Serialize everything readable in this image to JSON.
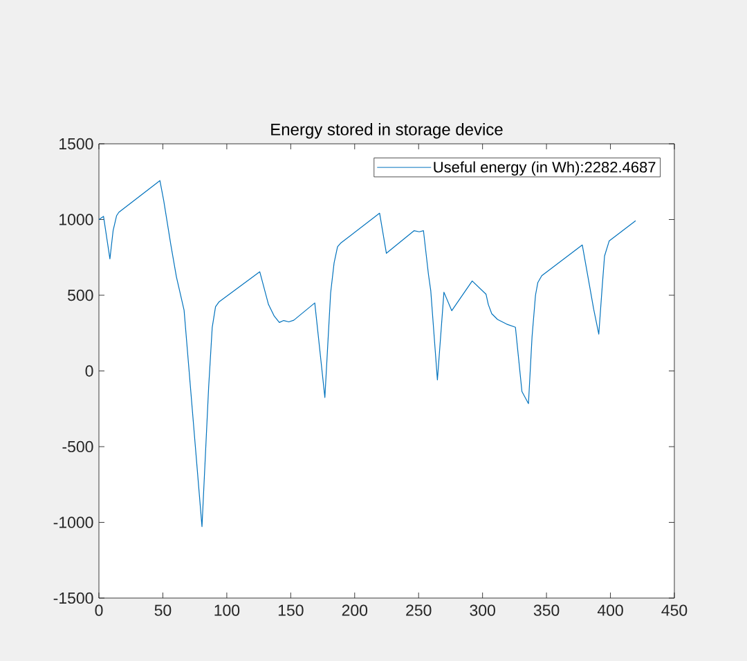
{
  "chart_data": {
    "type": "line",
    "title": "Energy stored in storage device",
    "x": [
      0,
      3.6,
      8.6,
      11.1,
      13.8,
      15.6,
      47.7,
      50.7,
      56.2,
      60.6,
      66.6,
      80.6,
      85.8,
      88.6,
      91.2,
      94.0,
      125.8,
      132.6,
      137.1,
      141.1,
      144.5,
      148.5,
      152.4,
      168.8,
      176.7,
      181.2,
      183.9,
      186.6,
      189.3,
      219.5,
      224.8,
      246.4,
      250.5,
      253.8,
      257.7,
      259.5,
      264.7,
      269.8,
      275.9,
      291.9,
      302.7,
      304.5,
      307.2,
      311.7,
      318.9,
      325.7,
      330.8,
      335.9,
      338.7,
      341.4,
      343.2,
      346.3,
      378.0,
      383.7,
      386.9,
      390.9,
      393.6,
      395.4,
      399.0,
      419.7
    ],
    "series": [
      {
        "name": "Useful energy (in Wh):2282.4687",
        "color": "#0072bd",
        "values": [
          1000,
          1021,
          740,
          926,
          1025,
          1048,
          1257,
          1124,
          835,
          622,
          401,
          -1028,
          -110,
          287,
          424,
          457,
          655,
          439,
          362,
          320,
          333,
          324,
          335,
          449,
          -175,
          515,
          713,
          820,
          846,
          1042,
          777,
          926,
          919,
          926,
          637,
          530,
          -59,
          520,
          398,
          594,
          507,
          439,
          378,
          340,
          309,
          289,
          -136,
          -216,
          225,
          500,
          583,
          629,
          832,
          561,
          408,
          243,
          561,
          759,
          858,
          992
        ]
      }
    ],
    "xlim": [
      0,
      450
    ],
    "ylim": [
      -1500,
      1500
    ],
    "xticks": [
      0,
      50,
      100,
      150,
      200,
      250,
      300,
      350,
      400,
      450
    ],
    "yticks": [
      -1500,
      -1000,
      -500,
      0,
      500,
      1000,
      1500
    ],
    "grid": false,
    "legend": "top right",
    "marker": "none",
    "line_style": "solid"
  }
}
